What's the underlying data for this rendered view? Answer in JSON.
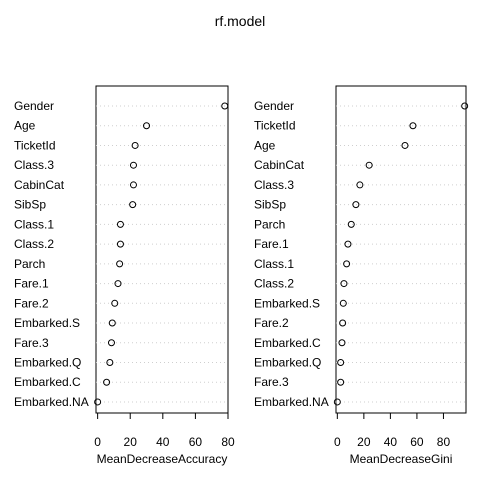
{
  "chart_data": [
    {
      "type": "scatter",
      "title": "rf.model",
      "xlabel": "MeanDecreaseAccuracy",
      "ylabel": "",
      "xlim": [
        -1,
        80
      ],
      "xticks": [
        0,
        20,
        40,
        60,
        80
      ],
      "grid": true,
      "categories": [
        "Gender",
        "Age",
        "TicketId",
        "Class.3",
        "CabinCat",
        "SibSp",
        "Class.1",
        "Class.2",
        "Parch",
        "Fare.1",
        "Fare.2",
        "Embarked.S",
        "Fare.3",
        "Embarked.Q",
        "Embarked.C",
        "Embarked.NA"
      ],
      "values": [
        78,
        30,
        23,
        22,
        22,
        21.5,
        14,
        14,
        13.5,
        12.5,
        10.5,
        9,
        8.5,
        7.5,
        5.5,
        0
      ]
    },
    {
      "type": "scatter",
      "title": "rf.model",
      "xlabel": "MeanDecreaseGini",
      "ylabel": "",
      "xlim": [
        -1,
        97
      ],
      "xticks": [
        0,
        20,
        40,
        60,
        80
      ],
      "grid": true,
      "categories": [
        "Gender",
        "TicketId",
        "Age",
        "CabinCat",
        "Class.3",
        "SibSp",
        "Parch",
        "Fare.1",
        "Class.1",
        "Class.2",
        "Embarked.S",
        "Fare.2",
        "Embarked.C",
        "Embarked.Q",
        "Fare.3",
        "Embarked.NA"
      ],
      "values": [
        96,
        57,
        51,
        24,
        17,
        14,
        10.5,
        8,
        7,
        5,
        4.5,
        4,
        3.5,
        2.5,
        2.5,
        0
      ]
    }
  ]
}
